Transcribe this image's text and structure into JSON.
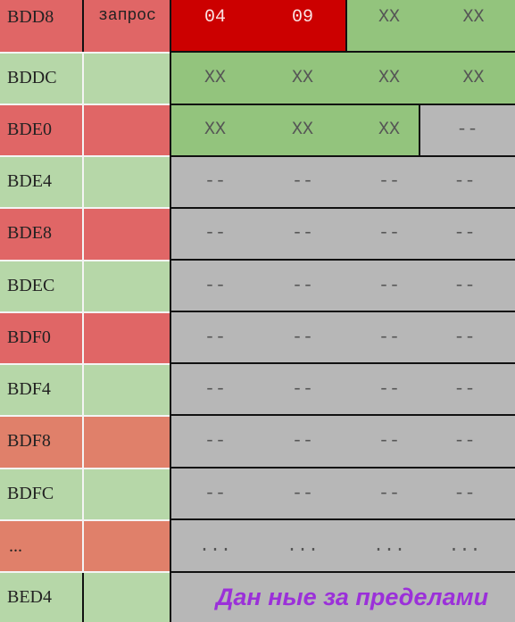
{
  "header": {
    "address": "BDD8",
    "request_label": "запрос",
    "bytes": [
      "04",
      "09",
      "XX",
      "XX"
    ]
  },
  "rows": [
    {
      "address": "BDDC",
      "bytes": [
        "XX",
        "XX",
        "XX",
        "XX"
      ]
    },
    {
      "address": "BDE0",
      "bytes": [
        "XX",
        "XX",
        "XX",
        "--"
      ]
    },
    {
      "address": "BDE4",
      "bytes": [
        "--",
        "--",
        "--",
        "--"
      ]
    },
    {
      "address": "BDE8",
      "bytes": [
        "--",
        "--",
        "--",
        "--"
      ]
    },
    {
      "address": "BDEC",
      "bytes": [
        "--",
        "--",
        "--",
        "--"
      ]
    },
    {
      "address": "BDF0",
      "bytes": [
        "--",
        "--",
        "--",
        "--"
      ]
    },
    {
      "address": "BDF4",
      "bytes": [
        "--",
        "--",
        "--",
        "--"
      ]
    },
    {
      "address": "BDF8",
      "bytes": [
        "--",
        "--",
        "--",
        "--"
      ]
    },
    {
      "address": "BDFC",
      "bytes": [
        "--",
        "--",
        "--",
        "--"
      ]
    },
    {
      "address": "...",
      "bytes": [
        "...",
        "...",
        "...",
        "..."
      ]
    }
  ],
  "last_row": {
    "address": "BED4",
    "note": "Дан  ные за пределами"
  },
  "colors": {
    "red": "#cc0000",
    "green": "#93c47d",
    "gray": "#b7b7b7",
    "addr_red": "#e06666",
    "addr_green": "#b6d7a8",
    "salmon": "#e0806a",
    "note": "#9b30d9"
  }
}
